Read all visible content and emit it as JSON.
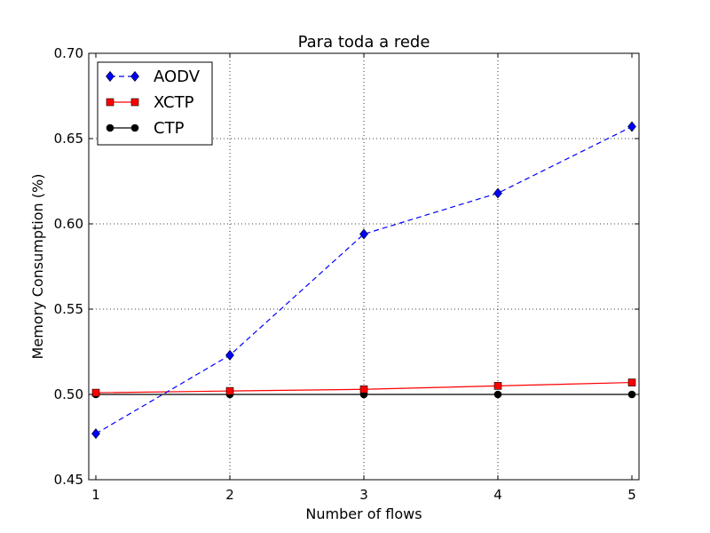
{
  "chart_data": {
    "type": "line",
    "title": "Para toda a rede",
    "xlabel": "Number of flows",
    "ylabel": "Memory Consumption (%)",
    "x": [
      1,
      2,
      3,
      4,
      5
    ],
    "xlim": [
      1,
      5
    ],
    "ylim": [
      0.45,
      0.7
    ],
    "x_ticks": [
      "1",
      "2",
      "3",
      "4",
      "5"
    ],
    "y_ticks": [
      "0.45",
      "0.50",
      "0.55",
      "0.60",
      "0.65",
      "0.70"
    ],
    "grid": true,
    "legend_position": "top-left",
    "series": [
      {
        "name": "AODV",
        "values": [
          0.477,
          0.523,
          0.594,
          0.618,
          0.657
        ],
        "color": "#0000ff",
        "marker": "diamond",
        "line": "dashed"
      },
      {
        "name": "XCTP",
        "values": [
          0.501,
          0.502,
          0.503,
          0.505,
          0.507
        ],
        "color": "#ff0000",
        "marker": "square",
        "line": "solid"
      },
      {
        "name": "CTP",
        "values": [
          0.5,
          0.5,
          0.5,
          0.5,
          0.5
        ],
        "color": "#000000",
        "marker": "circle",
        "line": "solid"
      }
    ]
  }
}
